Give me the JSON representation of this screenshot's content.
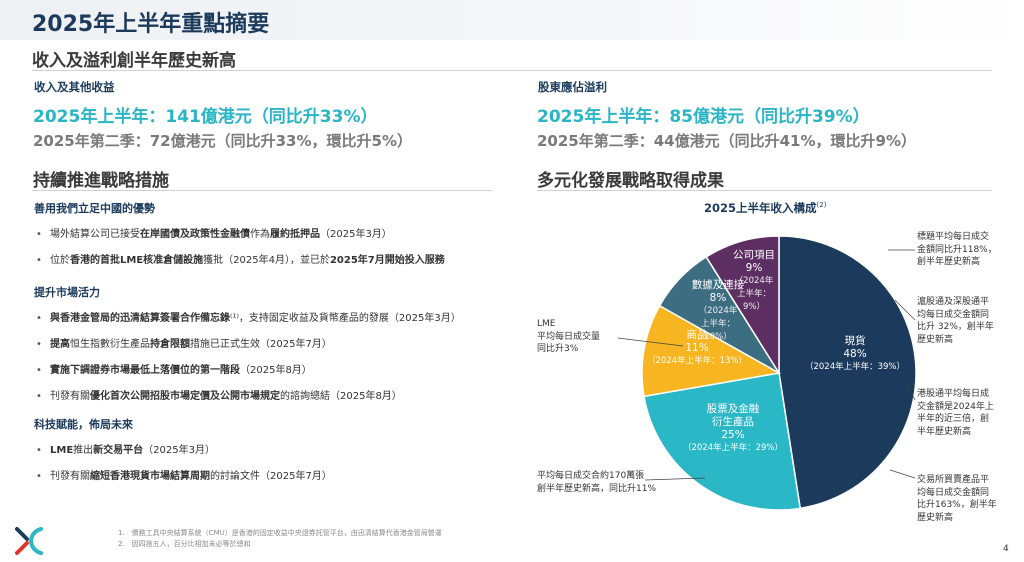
{
  "title": "2025年上半年重點摘要",
  "record_heading": "收入及溢利創半年歷史新高",
  "revenue": {
    "label": "收入及其他收益",
    "h1": "2025年上半年：141億港元（同比升33%）",
    "q2": "2025年第二季：72億港元（同比升33%，環比升5%）"
  },
  "profit": {
    "label": "股東應佔溢利",
    "h1": "2025年上半年：85億港元（同比升39%）",
    "q2": "2025年第二季：44億港元（同比升41%，環比升9%）"
  },
  "strategy": {
    "heading": "持續推進戰略措施",
    "groups": [
      {
        "title": "善用我們立足中國的優勢",
        "items": [
          {
            "pre": "場外結算公司已接受",
            "b1": "在岸國債及政策性金融債",
            "mid": "作為",
            "b2": "履約抵押品",
            "post": "（2025年3月）"
          },
          {
            "pre": "位於",
            "b1": "香港的首批LME核准倉儲設施",
            "mid": "獲批（2025年4月），並已於",
            "b2": "2025年7月開始投入服務",
            "post": ""
          }
        ]
      },
      {
        "title": "提升市場活力",
        "items": [
          {
            "pre": "",
            "b1": "與香港金管局的迅清結算簽署合作備忘錄",
            "mid": "⁽¹⁾，支持固定收益及貨幣產品的發展（2025年3月）",
            "b2": "",
            "post": ""
          },
          {
            "pre": "",
            "b1": "提高",
            "mid": "恒生指數衍生產品",
            "b2": "持倉限額",
            "post": "措施已正式生效（2025年7月）"
          },
          {
            "pre": "",
            "b1": "實施下調證券市場最低上落價位的第一階段",
            "mid": "（2025年8月）",
            "b2": "",
            "post": ""
          },
          {
            "pre": "刊發有關",
            "b1": "優化首次公開招股市場定價及公開市場規定",
            "mid": "的諮詢總結（2025年8月）",
            "b2": "",
            "post": ""
          }
        ]
      },
      {
        "title": "科技賦能，佈局未來",
        "items": [
          {
            "pre": "",
            "b1": "LME",
            "mid": "推出",
            "b2": "新交易平台",
            "post": "（2025年3月）"
          },
          {
            "pre": "刊發有關",
            "b1": "縮短香港現貨市場結算周期",
            "mid": "的討論文件（2025年7月）",
            "b2": "",
            "post": ""
          }
        ]
      }
    ]
  },
  "diversification_heading": "多元化發展戰略取得成果",
  "chart_data": {
    "type": "pie",
    "title": "2025上半年收入構成",
    "title_note": "(2)",
    "slices": [
      {
        "name": "現貨",
        "value": 48,
        "prior": "（2024年上半年：39%）",
        "color": "#1b3a5c"
      },
      {
        "name": "股票及金融衍生產品",
        "value": 25,
        "prior": "（2024年上半年：29%）",
        "color": "#2ab7c6"
      },
      {
        "name": "商品",
        "value": 11,
        "prior": "（2024年上半年：13%）",
        "color": "#f7b521"
      },
      {
        "name": "數據及連接",
        "value": 8,
        "prior": "（2024年上半年：10%）",
        "color": "#3d6d80"
      },
      {
        "name": "公司項目",
        "value": 9,
        "prior": "（2024年上半年：9%）",
        "color": "#5c2e62"
      }
    ],
    "labels": {
      "cash": [
        "現貨",
        "48%",
        "（2024年上半年：39%）"
      ],
      "equity": [
        "股票及金融",
        "衍生產品",
        "25%",
        "（2024年上半年：29%）"
      ],
      "commodities": [
        "商品",
        "11%",
        "（2024年上半年：13%）"
      ],
      "data": [
        "數據及連接",
        "8%",
        "（2024年",
        "上半年：",
        "10%）"
      ],
      "corporate": [
        "公司項目",
        "9%",
        "（2024年",
        "上半年：",
        "9%）"
      ]
    }
  },
  "annotations": {
    "lme": [
      "LME",
      "平均每日成交量",
      "同比升3%"
    ],
    "equity": [
      "平均每日成交合約170萬張",
      "創半年歷史新高，同比升11%"
    ],
    "cash1": [
      "標題平均每日成交",
      "金額同比升118%，",
      "創半年歷史新高"
    ],
    "cash2": [
      "滬股通及深股通平",
      "均每日成交金額同",
      "比升 32%，創半年",
      "歷史新高"
    ],
    "cash3": [
      "港股通平均每日成",
      "交金額是2024年上",
      "半年的近三倍，創",
      "半年歷史新高"
    ],
    "cash4": [
      "交易所買賣產品平",
      "均每日成交金額同",
      "比升163%，創半年",
      "歷史新高"
    ]
  },
  "footnotes": [
    "1.　債務工具中央結算系統（CMU）是香港的固定收益中央證券託管平台，由迅清結算代香港金管局營運",
    "2.　因四捨五入，百分比相加未必等於總和"
  ],
  "page_number": "4"
}
